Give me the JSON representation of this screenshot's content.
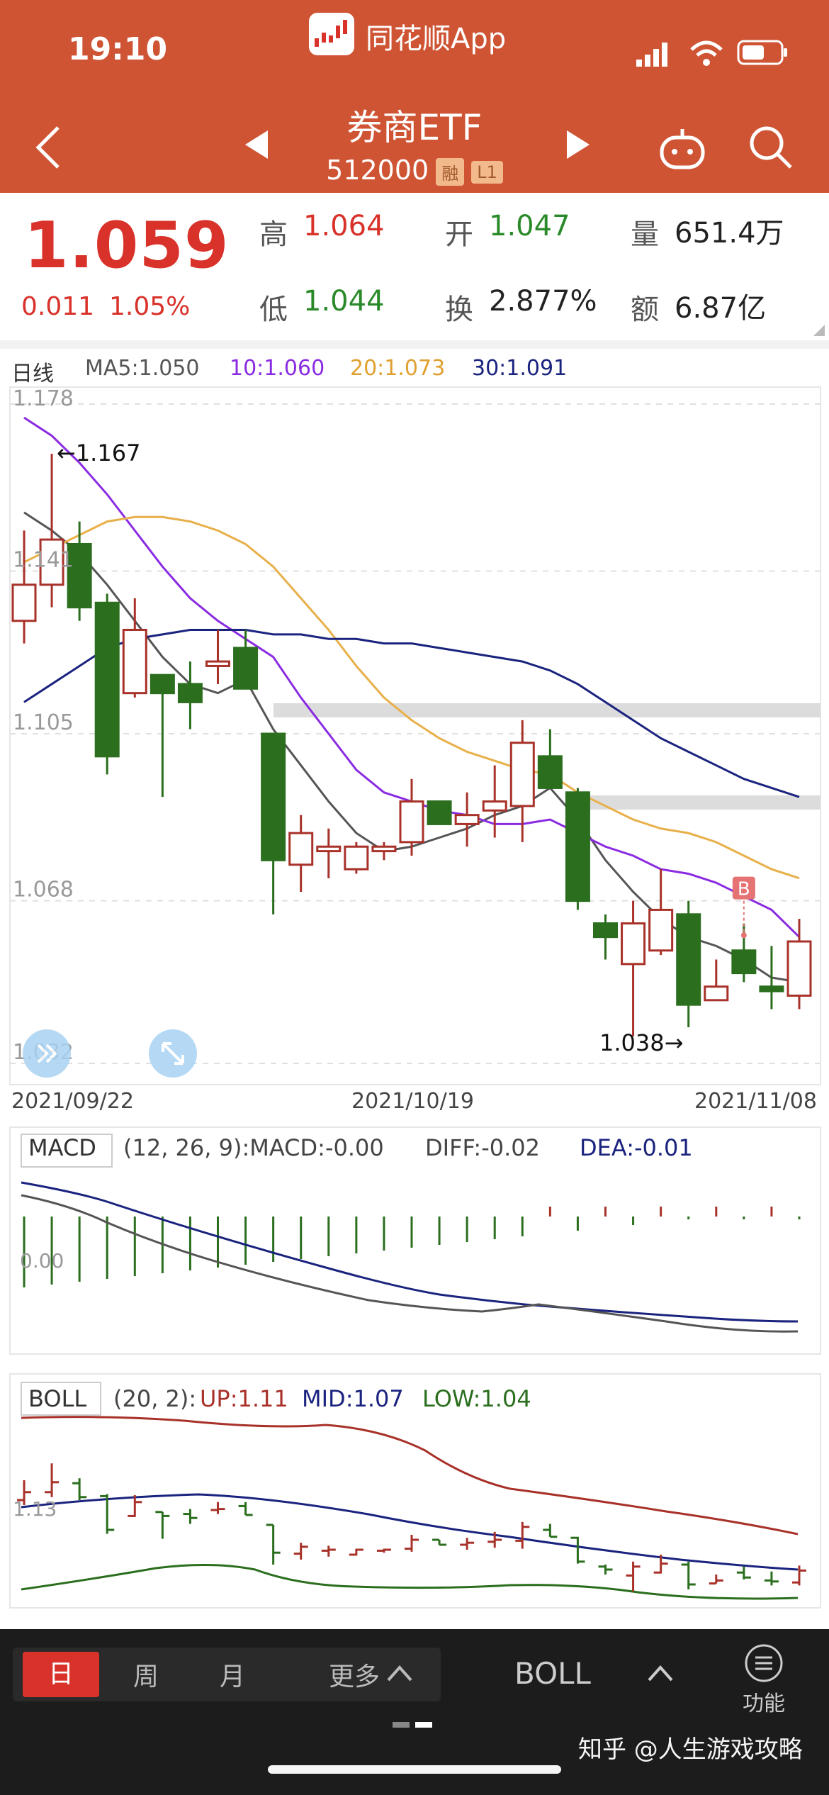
{
  "status_bar": {
    "time": "19:10",
    "app_name": "同花顺App"
  },
  "header": {
    "title": "券商ETF",
    "code": "512000",
    "tags": [
      "融",
      "L1"
    ]
  },
  "quote": {
    "price": "1.059",
    "change": "0.011",
    "change_pct": "1.05%",
    "high_label": "高",
    "high": "1.064",
    "low_label": "低",
    "low": "1.044",
    "open_label": "开",
    "open": "1.047",
    "turnover_label": "换",
    "turnover": "2.877%",
    "volume_label": "量",
    "volume": "651.4万",
    "amount_label": "额",
    "amount": "6.87亿"
  },
  "kline": {
    "legend_period": "日线",
    "ma5": "MA5:1.050",
    "ma10": "10:1.060",
    "ma20": "20:1.073",
    "ma30": "30:1.091",
    "y_ticks": [
      "1.178",
      "1.141",
      "1.105",
      "1.068",
      "1.032"
    ],
    "y_tick_values": [
      1.178,
      1.141,
      1.105,
      1.068,
      1.032
    ],
    "high_annotation": "←1.167",
    "low_annotation": "1.038→",
    "buy_marker": "B",
    "x_labels": [
      "2021/09/22",
      "2021/10/19",
      "2021/11/08"
    ],
    "candles": [
      [
        1.13,
        1.138,
        1.125,
        1.15
      ],
      [
        1.138,
        1.148,
        1.133,
        1.167
      ],
      [
        1.147,
        1.133,
        1.13,
        1.152
      ],
      [
        1.134,
        1.1,
        1.096,
        1.136
      ],
      [
        1.114,
        1.128,
        1.113,
        1.135
      ],
      [
        1.118,
        1.114,
        1.091,
        1.118
      ],
      [
        1.116,
        1.112,
        1.106,
        1.121
      ],
      [
        1.12,
        1.121,
        1.116,
        1.128
      ],
      [
        1.124,
        1.115,
        1.115,
        1.128
      ],
      [
        1.105,
        1.077,
        1.065,
        1.105
      ],
      [
        1.076,
        1.083,
        1.07,
        1.087
      ],
      [
        1.079,
        1.08,
        1.073,
        1.084
      ],
      [
        1.075,
        1.08,
        1.074,
        1.081
      ],
      [
        1.079,
        1.08,
        1.077,
        1.081
      ],
      [
        1.081,
        1.09,
        1.078,
        1.095
      ],
      [
        1.09,
        1.085,
        1.085,
        1.09
      ],
      [
        1.085,
        1.087,
        1.08,
        1.092
      ],
      [
        1.088,
        1.09,
        1.082,
        1.098
      ],
      [
        1.089,
        1.103,
        1.081,
        1.108
      ],
      [
        1.1,
        1.093,
        1.093,
        1.106
      ],
      [
        1.092,
        1.068,
        1.066,
        1.093
      ],
      [
        1.063,
        1.06,
        1.055,
        1.065
      ],
      [
        1.054,
        1.063,
        1.038,
        1.068
      ],
      [
        1.057,
        1.066,
        1.056,
        1.075
      ],
      [
        1.065,
        1.045,
        1.04,
        1.068
      ],
      [
        1.046,
        1.049,
        1.046,
        1.055
      ],
      [
        1.057,
        1.052,
        1.05,
        1.063
      ],
      [
        1.049,
        1.048,
        1.044,
        1.058
      ],
      [
        1.047,
        1.059,
        1.044,
        1.064
      ]
    ],
    "ma5_series": [
      1.154,
      1.15,
      1.145,
      1.138,
      1.13,
      1.122,
      1.116,
      1.114,
      1.117,
      1.106,
      1.098,
      1.09,
      1.083,
      1.079,
      1.08,
      1.082,
      1.084,
      1.087,
      1.089,
      1.093,
      1.086,
      1.077,
      1.07,
      1.064,
      1.06,
      1.058,
      1.055,
      1.051,
      1.05
    ],
    "ma10_series": [
      1.175,
      1.171,
      1.165,
      1.158,
      1.15,
      1.142,
      1.135,
      1.13,
      1.126,
      1.122,
      1.113,
      1.105,
      1.097,
      1.092,
      1.09,
      1.088,
      1.087,
      1.085,
      1.085,
      1.086,
      1.083,
      1.08,
      1.078,
      1.075,
      1.074,
      1.072,
      1.069,
      1.066,
      1.06
    ],
    "ma20_series": [
      1.143,
      1.146,
      1.149,
      1.152,
      1.153,
      1.153,
      1.152,
      1.15,
      1.147,
      1.142,
      1.135,
      1.128,
      1.12,
      1.113,
      1.108,
      1.104,
      1.101,
      1.099,
      1.097,
      1.096,
      1.092,
      1.089,
      1.086,
      1.084,
      1.083,
      1.081,
      1.078,
      1.075,
      1.073
    ],
    "ma30_series": [
      1.112,
      1.116,
      1.12,
      1.124,
      1.126,
      1.127,
      1.128,
      1.128,
      1.128,
      1.127,
      1.127,
      1.126,
      1.126,
      1.125,
      1.125,
      1.124,
      1.123,
      1.122,
      1.121,
      1.119,
      1.116,
      1.112,
      1.108,
      1.104,
      1.101,
      1.098,
      1.095,
      1.093,
      1.091
    ]
  },
  "macd": {
    "label": "MACD",
    "params": "(12, 26, 9):MACD:-0.00",
    "diff": "DIFF:-0.02",
    "dea": "DEA:-0.01",
    "zero_label": "0.00"
  },
  "boll": {
    "label": "BOLL",
    "params": "(20, 2):",
    "up": "UP:1.11",
    "mid": "MID:1.07",
    "low": "LOW:1.04",
    "y_label": "1.13"
  },
  "bottom_bar": {
    "tabs": [
      "日",
      "周",
      "月"
    ],
    "more": "更多",
    "indicator": "BOLL",
    "function": "功能"
  },
  "watermark": "知乎 @人生游戏攻略",
  "colors": {
    "header": "#cf5434",
    "up": "#a8322a",
    "down": "#2a6e1e",
    "ma5": "#555555",
    "ma10": "#8a2be2",
    "ma20": "#e8b04a",
    "ma30": "#1a237e"
  }
}
